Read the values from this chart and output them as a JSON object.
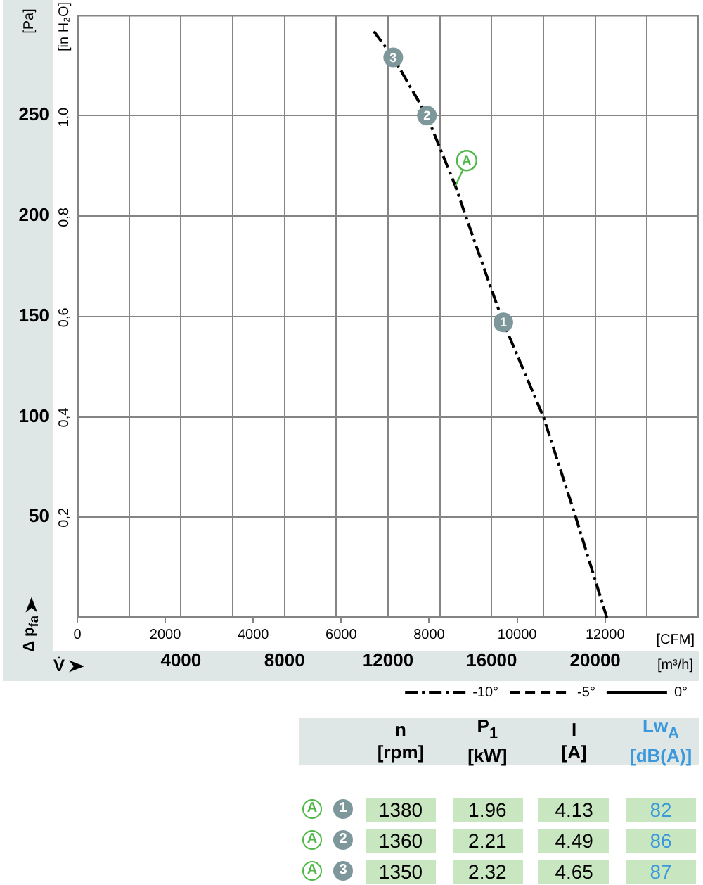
{
  "chart_data": [
    {
      "type": "line",
      "xlabel": "V̇",
      "ylabel": "Δ p$_{fa}$",
      "y2label": "[in H₂O]",
      "x2label": "[CFM]",
      "annotations": [
        "[Pa]",
        "[m³/h]",
        {
          "text": "3",
          "x": 12200,
          "y": 279
        },
        {
          "text": "2",
          "x": 13500,
          "y": 250
        },
        {
          "text": "1",
          "x": 16450,
          "y": 147
        },
        {
          "text": "A",
          "x": 14600,
          "y": 215
        }
      ],
      "series": [
        {
          "name": "-10°",
          "color": "#000000",
          "line_style": "dashdot",
          "x": [
            11450,
            12200,
            13500,
            14000,
            14600,
            15000,
            15950,
            16450,
            18000,
            19250,
            20450
          ],
          "values": [
            292,
            279,
            250,
            234,
            215,
            200,
            165,
            147,
            100,
            50,
            0
          ]
        },
        {
          "name": "-5°",
          "color": "#000000",
          "line_style": "dashed"
        },
        {
          "name": "0°",
          "color": "#000000",
          "line_style": "solid"
        }
      ],
      "xlim": [
        0,
        24000
      ],
      "xticks": [
        {
          "value": 2000,
          "label": null
        },
        4000,
        {
          "value": 6000,
          "label": null
        },
        8000,
        {
          "value": 10000,
          "label": null
        },
        12000,
        {
          "value": 14000,
          "label": null
        },
        16000,
        {
          "value": 18000,
          "label": null
        },
        20000,
        {
          "value": 22000,
          "label": null
        }
      ],
      "x2lim": [
        0,
        14130
      ],
      "x2ticks": [
        0,
        2000,
        4000,
        6000,
        8000,
        10000,
        12000
      ],
      "ylim": [
        0,
        300
      ],
      "yticks": [
        50,
        100,
        150,
        200,
        250
      ],
      "y2lim": [
        0,
        1.204
      ],
      "y2ticks": [
        {
          "value": 0.2,
          "label": "0,2"
        },
        {
          "value": 0.4,
          "label": "0,4"
        },
        {
          "value": 0.6,
          "label": "0,6"
        },
        {
          "value": 0.8,
          "label": "0,8"
        },
        {
          "value": 1.0,
          "label": "1,0"
        }
      ],
      "grid": true,
      "legend": "bottom right"
    },
    {
      "type": "heatmap",
      "categories": [
        "n [rpm]",
        "P$_{1}$ [kW]",
        "I [A]",
        "Lw$_{A}$ [dB(A)]"
      ],
      "y_categories": [
        "A",
        "A",
        "A"
      ],
      "y2_categories": [
        "1",
        "2",
        "3"
      ],
      "cells": [
        [
          1380,
          1.96,
          4.13,
          82
        ],
        [
          1360,
          2.21,
          4.49,
          86
        ],
        [
          1350,
          2.32,
          4.65,
          87
        ]
      ],
      "data_labels": true
    }
  ]
}
